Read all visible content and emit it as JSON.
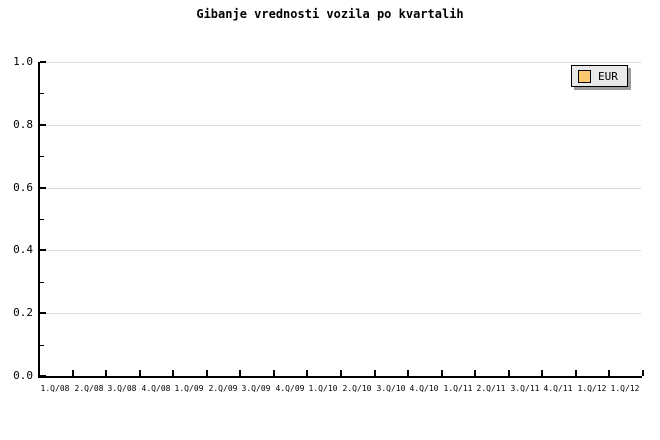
{
  "chart": {
    "title": "Gibanje vrednosti vozila po kvartalih",
    "legend": {
      "label": "EUR",
      "swatch_color": "#fbc870"
    }
  },
  "chart_data": {
    "type": "line",
    "title": "Gibanje vrednosti vozila po kvartalih",
    "categories": [
      "1.Q/08",
      "2.Q/08",
      "3.Q/08",
      "4.Q/08",
      "1.Q/09",
      "2.Q/09",
      "3.Q/09",
      "4.Q/09",
      "1.Q/10",
      "2.Q/10",
      "3.Q/10",
      "4.Q/10",
      "1.Q/11",
      "2.Q/11",
      "3.Q/11",
      "4.Q/11",
      "1.Q/12",
      "1.Q/12"
    ],
    "series": [
      {
        "name": "EUR",
        "color": "#fbc870",
        "values": []
      }
    ],
    "plot_empty": true,
    "ylim": [
      0.0,
      1.0
    ],
    "yticks": [
      0.0,
      0.2,
      0.4,
      0.6,
      0.8,
      1.0
    ],
    "ytick_labels": [
      "0.0",
      "0.2",
      "0.4",
      "0.6",
      "0.8",
      "1.0"
    ],
    "yminor_step": 0.1,
    "xlabel": "",
    "ylabel": "",
    "grid": "horizontal",
    "grid_color": "#dcdcdc",
    "legend_position": "top-right",
    "axis_color": "#000000",
    "background_color": "#ffffff"
  }
}
